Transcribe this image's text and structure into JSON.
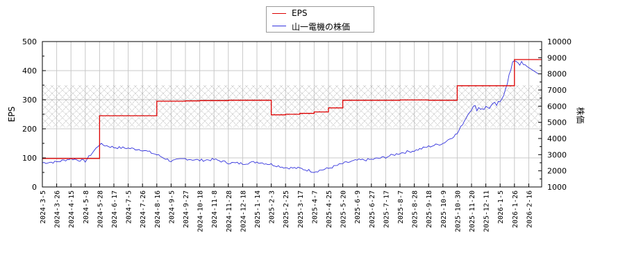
{
  "legend": {
    "items": [
      {
        "label": "EPS",
        "color": "#dd0000"
      },
      {
        "label": "山一電機の株価",
        "color": "#3333dd"
      }
    ]
  },
  "axes": {
    "left_title": "EPS",
    "right_title": "株価"
  },
  "chart_data": {
    "type": "line",
    "title": "",
    "xlabel": "",
    "ylabel": "EPS",
    "y2label": "株価",
    "ylim": [
      0,
      500
    ],
    "y2lim": [
      1000,
      10000
    ],
    "yticks": [
      0,
      100,
      200,
      300,
      400,
      500
    ],
    "y2ticks": [
      1000,
      2000,
      3000,
      4000,
      5000,
      6000,
      7000,
      8000,
      9000,
      10000
    ],
    "grid": true,
    "legend_position": "top-center",
    "shaded_band": {
      "axis": "left",
      "from": 205,
      "to": 350,
      "pattern": "crosshatch"
    },
    "categories": [
      "2024-3-5",
      "2024-3-26",
      "2024-4-15",
      "2024-5-8",
      "2024-5-28",
      "2024-6-17",
      "2024-7-5",
      "2024-7-26",
      "2024-8-16",
      "2024-9-5",
      "2024-9-27",
      "2024-10-18",
      "2024-11-8",
      "2024-11-28",
      "2024-12-18",
      "2025-1-14",
      "2025-2-3",
      "2025-2-25",
      "2025-3-17",
      "2025-4-7",
      "2025-4-25",
      "2025-5-20",
      "2025-6-9",
      "2025-6-27",
      "2025-7-17",
      "2025-8-7",
      "2025-8-28",
      "2025-9-18",
      "2025-10-9",
      "2025-10-30",
      "2025-11-20",
      "2025-12-11",
      "2026-1-5",
      "2026-1-26",
      "2026-2-16"
    ],
    "series": [
      {
        "name": "EPS",
        "axis": "left",
        "color": "#dd0000",
        "values": [
          98,
          98,
          98,
          98,
          245,
          245,
          245,
          245,
          295,
          295,
          296,
          297,
          297,
          298,
          298,
          298,
          248,
          250,
          253,
          258,
          272,
          298,
          298,
          298,
          298,
          299,
          299,
          298,
          298,
          348,
          348,
          348,
          348,
          438,
          438
        ]
      },
      {
        "name": "山一電機の株価",
        "axis": "right",
        "color": "#3333dd",
        "values": [
          2500,
          2550,
          2750,
          2600,
          3650,
          3450,
          3400,
          3300,
          3000,
          2600,
          2750,
          2650,
          2700,
          2500,
          2450,
          2550,
          2400,
          2200,
          2150,
          1950,
          2150,
          2450,
          2650,
          2700,
          2850,
          3100,
          3250,
          3500,
          3700,
          4300,
          5900,
          5900,
          6150,
          8900,
          8300
        ]
      }
    ]
  }
}
